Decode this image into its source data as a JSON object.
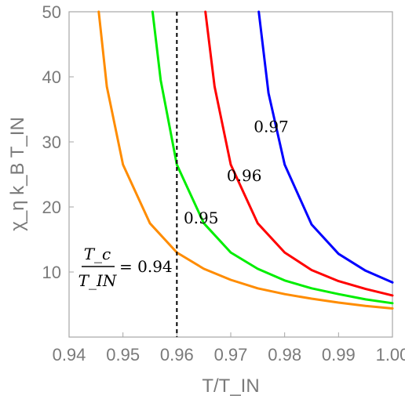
{
  "chart_data": {
    "type": "line",
    "xlabel": "T/T_IN",
    "ylabel": "χ_η k_B T_IN",
    "xlim": [
      0.94,
      1.0
    ],
    "ylim": [
      0,
      50
    ],
    "xticks": [
      "0.94",
      "0.95",
      "0.96",
      "0.97",
      "0.98",
      "0.99",
      "1.00"
    ],
    "yticks": [
      "10",
      "20",
      "30",
      "40",
      "50"
    ],
    "grid": false,
    "legend": "none",
    "reference_line": {
      "x": 0.96,
      "style": "dashed",
      "color": "#000000"
    },
    "annotation": {
      "numerator": "T_c",
      "denominator": "T_IN",
      "equals": "= 0.94"
    },
    "series": [
      {
        "label": "0.94",
        "color": "#ff8c00",
        "x": [
          0.9455,
          0.947,
          0.95,
          0.955,
          0.96,
          0.965,
          0.97,
          0.975,
          0.98,
          0.985,
          0.99,
          0.995,
          1.0
        ],
        "y": [
          50,
          38.5,
          26.5,
          17.5,
          13.0,
          10.5,
          8.8,
          7.5,
          6.6,
          5.9,
          5.3,
          4.8,
          4.4
        ]
      },
      {
        "label": "0.95",
        "color": "#00ee00",
        "x": [
          0.9555,
          0.957,
          0.96,
          0.965,
          0.97,
          0.975,
          0.98,
          0.985,
          0.99,
          0.995,
          1.0
        ],
        "y": [
          50,
          39.5,
          26.5,
          17.5,
          13.0,
          10.5,
          8.7,
          7.5,
          6.6,
          5.8,
          5.2
        ]
      },
      {
        "label": "0.96",
        "color": "#ff0000",
        "x": [
          0.9653,
          0.967,
          0.97,
          0.975,
          0.98,
          0.985,
          0.99,
          0.995,
          1.0
        ],
        "y": [
          50,
          38.5,
          26.5,
          17.5,
          13.0,
          10.3,
          8.6,
          7.4,
          6.4
        ]
      },
      {
        "label": "0.97",
        "color": "#0000ff",
        "x": [
          0.9752,
          0.977,
          0.98,
          0.985,
          0.99,
          0.995,
          1.0
        ],
        "y": [
          50,
          37.5,
          26.5,
          17.3,
          12.8,
          10.2,
          8.4
        ]
      }
    ]
  }
}
